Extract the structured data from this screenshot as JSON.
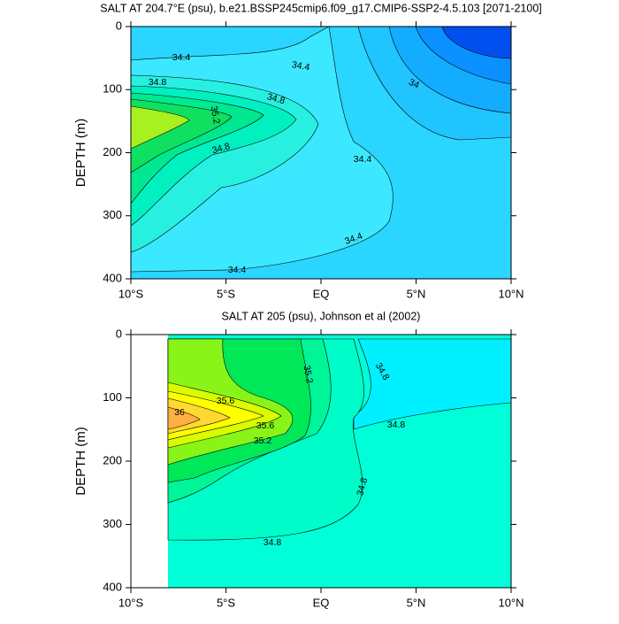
{
  "chart_data": [
    {
      "type": "contour",
      "title": "SALT AT 204.7°E (psu), b.e21.BSSP245cmip6.f09_g17.CMIP6-SSP2-4.5.103 [2071-2100]",
      "y_label": "DEPTH (m)",
      "xlim": [
        -10,
        10
      ],
      "xticks": [
        {
          "value": -10,
          "label": "10°S"
        },
        {
          "value": -5,
          "label": "5°S"
        },
        {
          "value": 0,
          "label": "EQ"
        },
        {
          "value": 5,
          "label": "5°N"
        },
        {
          "value": 10,
          "label": "10°N"
        }
      ],
      "ylim": [
        0,
        400
      ],
      "yticks": [
        0,
        100,
        200,
        300,
        400
      ],
      "levels": [
        33.6,
        33.8,
        34.0,
        34.2,
        34.4,
        34.6,
        34.8,
        35.0,
        35.2,
        35.4
      ],
      "colors": [
        "#0050f0",
        "#0a90ff",
        "#14acff",
        "#20c4ff",
        "#3ce8ff",
        "#28f0e0",
        "#00f0c0",
        "#00e890",
        "#10e060",
        "#a8f020"
      ],
      "base_color": "#2ad6ff"
    },
    {
      "type": "contour",
      "title": "SALT AT 205 (psu), Johnson et al (2002)",
      "y_label": "DEPTH (m)",
      "xlim": [
        -10,
        10
      ],
      "xticks": [
        {
          "value": -10,
          "label": "10°S"
        },
        {
          "value": -5,
          "label": "5°S"
        },
        {
          "value": 0,
          "label": "EQ"
        },
        {
          "value": 5,
          "label": "5°N"
        },
        {
          "value": 10,
          "label": "10°N"
        }
      ],
      "ylim": [
        0,
        400
      ],
      "yticks": [
        0,
        100,
        200,
        300,
        400
      ],
      "levels": [
        34.6,
        34.8,
        35.0,
        35.2,
        35.4,
        35.6,
        35.8,
        36.0,
        36.2
      ],
      "colors": [
        "#00f0ff",
        "#00fcc8",
        "#00f498",
        "#00e858",
        "#88f418",
        "#d8fc00",
        "#ffff00",
        "#ffd830",
        "#ffb040"
      ],
      "base_color": "#00ffd8"
    }
  ]
}
